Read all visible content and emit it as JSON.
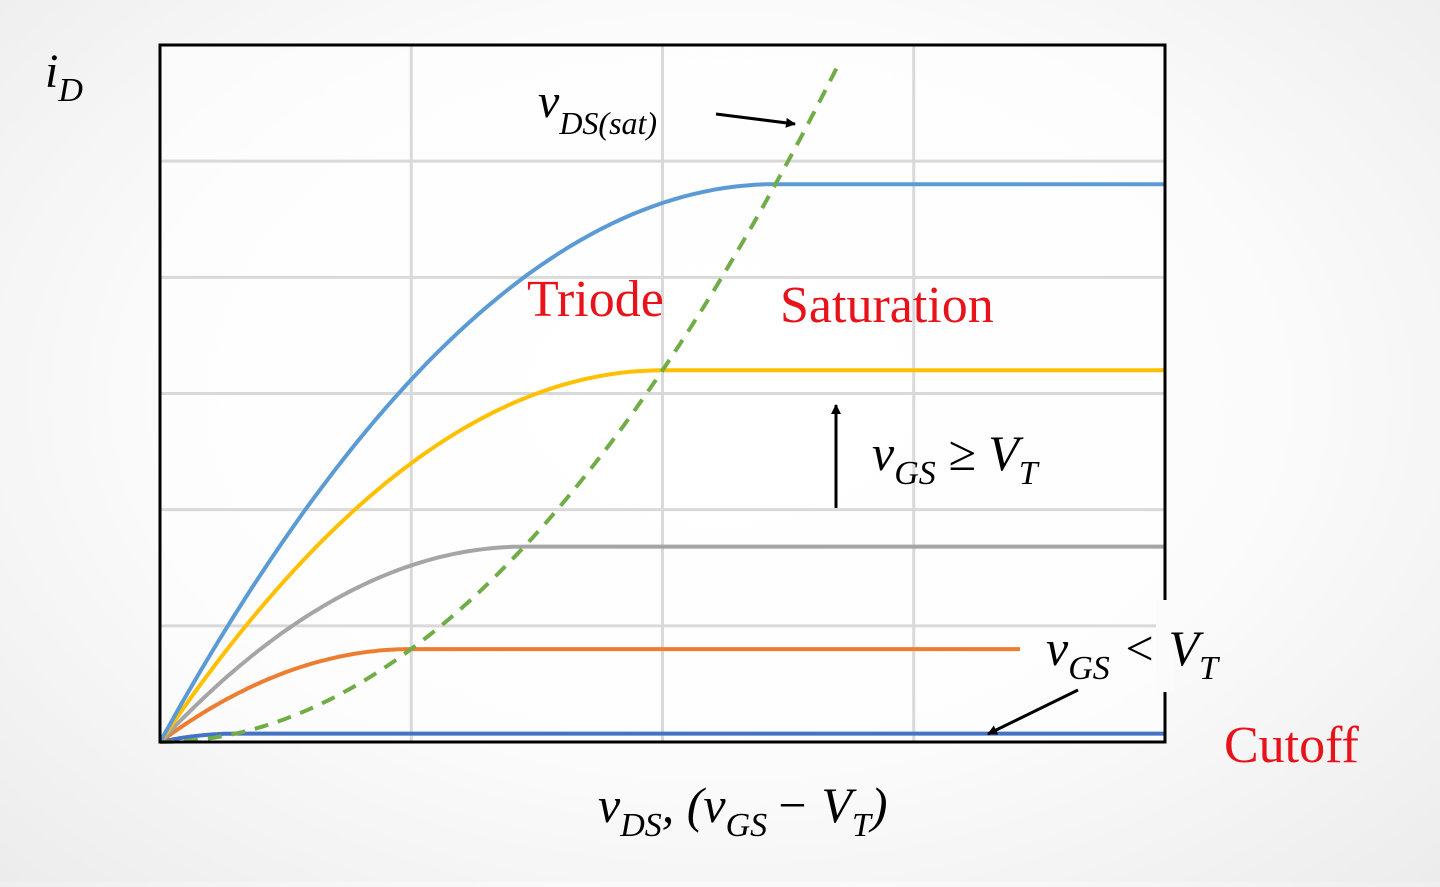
{
  "chart_data": {
    "type": "line",
    "title": "",
    "xlabel": {
      "main": "v",
      "sub1": "DS",
      "mid": ", (v",
      "sub2": "GS",
      "minus": "− V",
      "sub3": "T",
      "close": ")"
    },
    "ylabel": {
      "main": "i",
      "sub": "D"
    },
    "xlim": [
      0,
      4
    ],
    "ylim": [
      0,
      6
    ],
    "grid": true,
    "series": [
      {
        "vov": 0.3,
        "color": "#4472c4"
      },
      {
        "vov": 1.0,
        "color": "#ed7d31"
      },
      {
        "vov": 1.45,
        "color": "#a5a5a5"
      },
      {
        "vov": 2.0,
        "color": "#ffc000"
      },
      {
        "vov": 2.45,
        "color": "#5b9bd5"
      }
    ],
    "saturation_boundary": {
      "color": "#70ad47",
      "style": "dashed",
      "label": {
        "main": "v",
        "sub": "DS(sat)"
      }
    },
    "annotations": [
      {
        "text": "Triode",
        "type": "region"
      },
      {
        "text": "Saturation",
        "type": "region"
      },
      {
        "text": "Cutoff",
        "type": "region"
      },
      {
        "main": "v",
        "sub1": "GS",
        "op": " ≥ V",
        "sub2": "T",
        "type": "condition"
      },
      {
        "main": "v",
        "sub1": "GS",
        "op": " < V",
        "sub2": "T",
        "type": "condition"
      }
    ]
  }
}
